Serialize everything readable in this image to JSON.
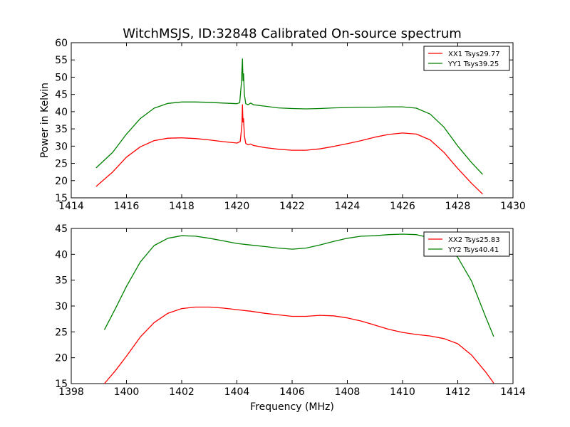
{
  "figure": {
    "title": "WitchMSJS, ID:32848 Calibrated On-source spectrum"
  },
  "chart_data": [
    {
      "type": "line",
      "title": "WitchMSJS, ID:32848 Calibrated On-source spectrum",
      "xlabel": "",
      "ylabel": "Power in Kelvin",
      "xlim": [
        1414,
        1430
      ],
      "ylim": [
        15,
        60
      ],
      "xticks": [
        1414,
        1416,
        1418,
        1420,
        1422,
        1424,
        1426,
        1428,
        1430
      ],
      "yticks": [
        15,
        20,
        25,
        30,
        35,
        40,
        45,
        50,
        55,
        60
      ],
      "grid": false,
      "legend_position": "top-right",
      "series": [
        {
          "name": "XX1 Tsys29.77",
          "color": "#ff0000",
          "points": [
            [
              1414.9,
              18.3
            ],
            [
              1415.5,
              22.5
            ],
            [
              1416.0,
              26.8
            ],
            [
              1416.5,
              29.8
            ],
            [
              1417.0,
              31.6
            ],
            [
              1417.5,
              32.3
            ],
            [
              1418.0,
              32.4
            ],
            [
              1418.5,
              32.2
            ],
            [
              1419.0,
              31.8
            ],
            [
              1419.5,
              31.3
            ],
            [
              1420.0,
              30.9
            ],
            [
              1420.12,
              31.3
            ],
            [
              1420.18,
              36.0
            ],
            [
              1420.2,
              42.0
            ],
            [
              1420.22,
              37.0
            ],
            [
              1420.24,
              38.0
            ],
            [
              1420.27,
              33.0
            ],
            [
              1420.32,
              30.8
            ],
            [
              1420.4,
              30.4
            ],
            [
              1420.5,
              30.6
            ],
            [
              1420.6,
              30.2
            ],
            [
              1421.0,
              29.6
            ],
            [
              1421.5,
              29.1
            ],
            [
              1422.0,
              28.8
            ],
            [
              1422.5,
              28.8
            ],
            [
              1423.0,
              29.2
            ],
            [
              1423.5,
              29.9
            ],
            [
              1424.0,
              30.7
            ],
            [
              1424.5,
              31.6
            ],
            [
              1425.0,
              32.6
            ],
            [
              1425.5,
              33.4
            ],
            [
              1426.0,
              33.8
            ],
            [
              1426.5,
              33.5
            ],
            [
              1427.0,
              31.8
            ],
            [
              1427.5,
              28.2
            ],
            [
              1428.0,
              23.5
            ],
            [
              1428.5,
              19.2
            ],
            [
              1428.9,
              16.1
            ]
          ]
        },
        {
          "name": "YY1 Tsys39.25",
          "color": "#008000",
          "points": [
            [
              1414.9,
              23.7
            ],
            [
              1415.5,
              28.2
            ],
            [
              1416.0,
              33.5
            ],
            [
              1416.5,
              38.0
            ],
            [
              1417.0,
              41.0
            ],
            [
              1417.5,
              42.4
            ],
            [
              1418.0,
              42.8
            ],
            [
              1418.5,
              42.8
            ],
            [
              1419.0,
              42.7
            ],
            [
              1419.5,
              42.5
            ],
            [
              1420.0,
              42.3
            ],
            [
              1420.1,
              42.6
            ],
            [
              1420.16,
              48.0
            ],
            [
              1420.2,
              55.3
            ],
            [
              1420.22,
              49.0
            ],
            [
              1420.24,
              51.0
            ],
            [
              1420.27,
              45.0
            ],
            [
              1420.32,
              42.3
            ],
            [
              1420.4,
              42.0
            ],
            [
              1420.5,
              42.5
            ],
            [
              1420.6,
              42.0
            ],
            [
              1421.0,
              41.6
            ],
            [
              1421.5,
              41.1
            ],
            [
              1422.0,
              40.9
            ],
            [
              1422.5,
              40.8
            ],
            [
              1423.0,
              40.9
            ],
            [
              1423.5,
              41.1
            ],
            [
              1424.0,
              41.2
            ],
            [
              1424.5,
              41.3
            ],
            [
              1425.0,
              41.3
            ],
            [
              1425.5,
              41.4
            ],
            [
              1426.0,
              41.4
            ],
            [
              1426.5,
              41.0
            ],
            [
              1427.0,
              39.3
            ],
            [
              1427.5,
              35.5
            ],
            [
              1428.0,
              30.0
            ],
            [
              1428.5,
              25.2
            ],
            [
              1428.9,
              21.8
            ]
          ]
        }
      ]
    },
    {
      "type": "line",
      "title": "",
      "xlabel": "Frequency (MHz)",
      "ylabel": "",
      "xlim": [
        1398,
        1414
      ],
      "ylim": [
        15,
        45
      ],
      "xticks": [
        1398,
        1400,
        1402,
        1404,
        1406,
        1408,
        1410,
        1412,
        1414
      ],
      "yticks": [
        15,
        20,
        25,
        30,
        35,
        40,
        45
      ],
      "grid": false,
      "legend_position": "top-right",
      "series": [
        {
          "name": "XX2 Tsys25.83",
          "color": "#ff0000",
          "points": [
            [
              1399.2,
              15.0
            ],
            [
              1399.6,
              17.5
            ],
            [
              1400.0,
              20.3
            ],
            [
              1400.5,
              24.0
            ],
            [
              1401.0,
              26.8
            ],
            [
              1401.5,
              28.6
            ],
            [
              1402.0,
              29.5
            ],
            [
              1402.5,
              29.8
            ],
            [
              1403.0,
              29.8
            ],
            [
              1403.5,
              29.6
            ],
            [
              1404.0,
              29.3
            ],
            [
              1404.5,
              29.0
            ],
            [
              1405.0,
              28.6
            ],
            [
              1405.5,
              28.3
            ],
            [
              1406.0,
              28.0
            ],
            [
              1406.5,
              28.0
            ],
            [
              1407.0,
              28.2
            ],
            [
              1407.5,
              28.1
            ],
            [
              1408.0,
              27.7
            ],
            [
              1408.5,
              27.1
            ],
            [
              1409.0,
              26.3
            ],
            [
              1409.5,
              25.5
            ],
            [
              1410.0,
              24.9
            ],
            [
              1410.5,
              24.5
            ],
            [
              1411.0,
              24.2
            ],
            [
              1411.5,
              23.7
            ],
            [
              1412.0,
              22.7
            ],
            [
              1412.5,
              20.5
            ],
            [
              1413.0,
              17.3
            ],
            [
              1413.3,
              15.1
            ]
          ]
        },
        {
          "name": "YY2 Tsys40.41",
          "color": "#008000",
          "points": [
            [
              1399.2,
              25.4
            ],
            [
              1399.6,
              29.5
            ],
            [
              1400.0,
              33.8
            ],
            [
              1400.5,
              38.5
            ],
            [
              1401.0,
              41.7
            ],
            [
              1401.5,
              43.1
            ],
            [
              1402.0,
              43.6
            ],
            [
              1402.5,
              43.5
            ],
            [
              1403.0,
              43.1
            ],
            [
              1403.5,
              42.6
            ],
            [
              1404.0,
              42.1
            ],
            [
              1404.5,
              41.8
            ],
            [
              1405.0,
              41.5
            ],
            [
              1405.5,
              41.2
            ],
            [
              1406.0,
              41.0
            ],
            [
              1406.5,
              41.2
            ],
            [
              1407.0,
              41.8
            ],
            [
              1407.5,
              42.5
            ],
            [
              1408.0,
              43.1
            ],
            [
              1408.5,
              43.5
            ],
            [
              1409.0,
              43.6
            ],
            [
              1409.5,
              43.8
            ],
            [
              1410.0,
              43.9
            ],
            [
              1410.5,
              43.8
            ],
            [
              1411.0,
              43.2
            ],
            [
              1411.5,
              42.0
            ],
            [
              1412.0,
              39.4
            ],
            [
              1412.5,
              34.8
            ],
            [
              1413.0,
              28.0
            ],
            [
              1413.3,
              24.1
            ]
          ]
        }
      ]
    }
  ]
}
